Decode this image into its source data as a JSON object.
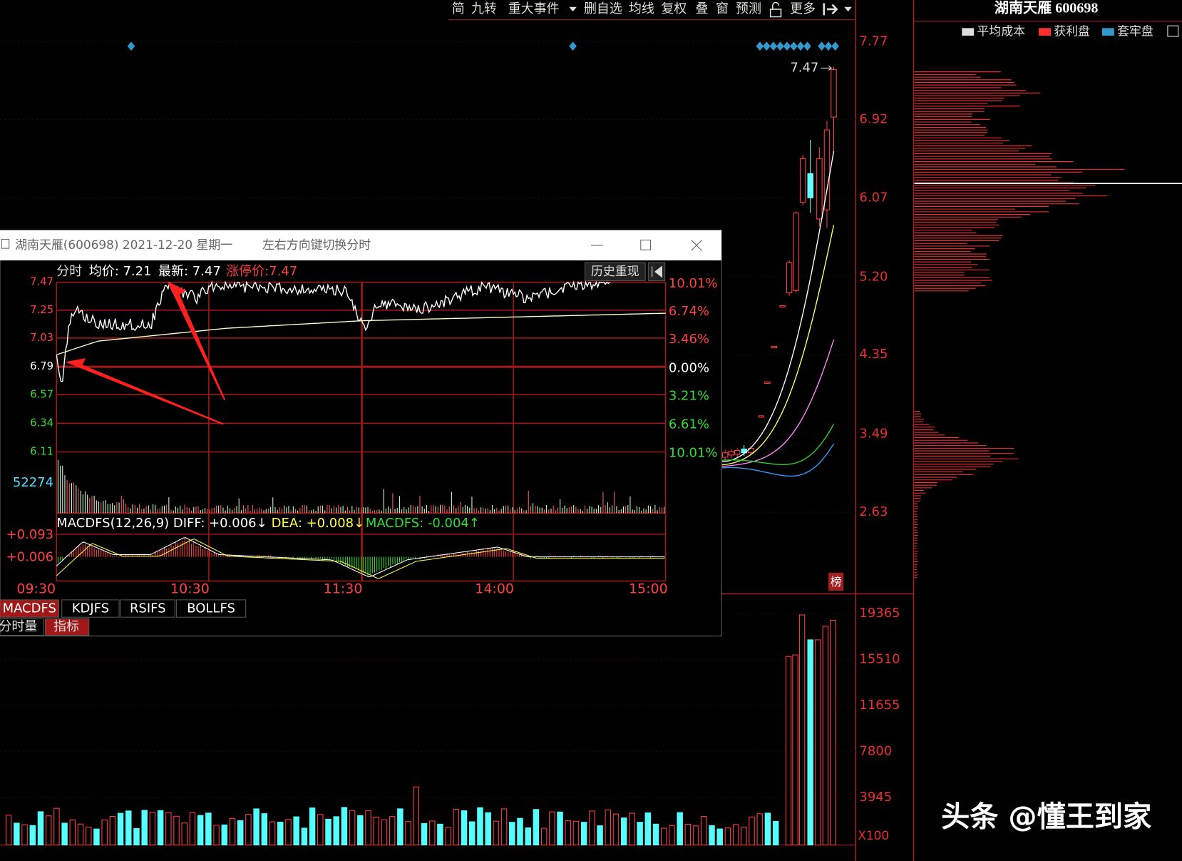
{
  "toolbar": [
    "简",
    "九转",
    "重大事件",
    "删自选",
    "均线",
    "复权",
    "叠",
    "窗",
    "预测",
    "更多"
  ],
  "right_panel": {
    "title": "湖南天雁 600698",
    "legend": [
      "平均成本",
      "获利盘",
      "套牢盘"
    ]
  },
  "main_chart": {
    "price_axis": [
      "7.77",
      "6.92",
      "6.07",
      "5.20",
      "4.35",
      "3.49",
      "2.63"
    ],
    "price_marker": "7.47",
    "volume_axis": [
      "19365",
      "15510",
      "11655",
      "7800",
      "3945"
    ],
    "volume_unit": "X100",
    "badge": "榜"
  },
  "popup": {
    "title": "湖南天雁(600698) 2021-12-20 星期一",
    "hint": "左右方向键切换分时",
    "header": [
      "分时",
      "均价: 7.21",
      "最新: 7.47",
      "涨停价:7.47"
    ],
    "button": "历史重现",
    "price_axis": [
      "7.47",
      "7.25",
      "7.03",
      "6.79",
      "6.57",
      "6.34",
      "6.11"
    ],
    "pct_axis": [
      "10.01%",
      "6.74%",
      "3.46%",
      "0.00%",
      "3.21%",
      "6.61%",
      "10.01%"
    ],
    "volume_label": "52274",
    "macd": [
      "MACDFS(12,26,9) DIFF: +0.006↓",
      "DEA: +0.008↓",
      "MACDFS: -0.004↑"
    ],
    "macd_axis": [
      "+0.093",
      "+0.006"
    ],
    "times": [
      "09:30",
      "10:30",
      "11:30",
      "14:00",
      "15:00"
    ],
    "tabs": [
      "MACDFS",
      "KDJFS",
      "RSIFS",
      "BOLLFS"
    ],
    "tabs2": [
      "分时量",
      "指标"
    ]
  },
  "watermark": "头条 @懂王到家"
}
